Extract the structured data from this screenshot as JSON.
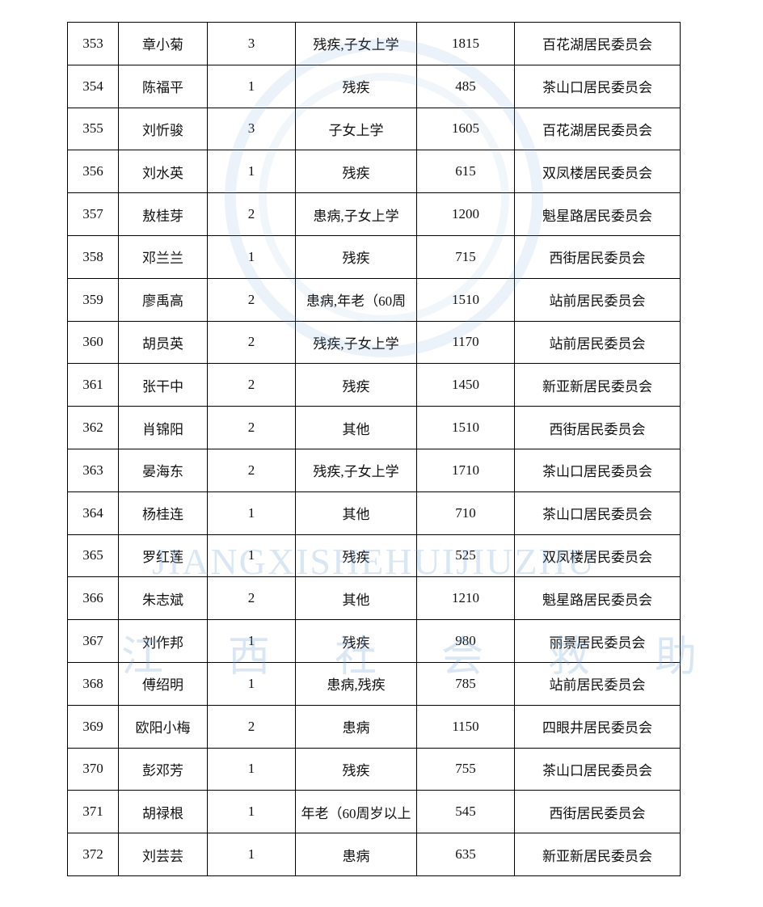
{
  "table": {
    "rows": [
      [
        "353",
        "章小菊",
        "3",
        "残疾,子女上学",
        "1815",
        "百花湖居民委员会"
      ],
      [
        "354",
        "陈福平",
        "1",
        "残疾",
        "485",
        "茶山口居民委员会"
      ],
      [
        "355",
        "刘忻骏",
        "3",
        "子女上学",
        "1605",
        "百花湖居民委员会"
      ],
      [
        "356",
        "刘水英",
        "1",
        "残疾",
        "615",
        "双凤楼居民委员会"
      ],
      [
        "357",
        "敖桂芽",
        "2",
        "患病,子女上学",
        "1200",
        "魁星路居民委员会"
      ],
      [
        "358",
        "邓兰兰",
        "1",
        "残疾",
        "715",
        "西街居民委员会"
      ],
      [
        "359",
        "廖禹高",
        "2",
        "患病,年老（60周",
        "1510",
        "站前居民委员会"
      ],
      [
        "360",
        "胡员英",
        "2",
        "残疾,子女上学",
        "1170",
        "站前居民委员会"
      ],
      [
        "361",
        "张干中",
        "2",
        "残疾",
        "1450",
        "新亚新居民委员会"
      ],
      [
        "362",
        "肖锦阳",
        "2",
        "其他",
        "1510",
        "西街居民委员会"
      ],
      [
        "363",
        "晏海东",
        "2",
        "残疾,子女上学",
        "1710",
        "茶山口居民委员会"
      ],
      [
        "364",
        "杨桂连",
        "1",
        "其他",
        "710",
        "茶山口居民委员会"
      ],
      [
        "365",
        "罗红莲",
        "1",
        "残疾",
        "525",
        "双凤楼居民委员会"
      ],
      [
        "366",
        "朱志斌",
        "2",
        "其他",
        "1210",
        "魁星路居民委员会"
      ],
      [
        "367",
        "刘作邦",
        "1",
        "残疾",
        "980",
        "丽景居民委员会"
      ],
      [
        "368",
        "傅绍明",
        "1",
        "患病,残疾",
        "785",
        "站前居民委员会"
      ],
      [
        "369",
        "欧阳小梅",
        "2",
        "患病",
        "1150",
        "四眼井居民委员会"
      ],
      [
        "370",
        "彭邓芳",
        "1",
        "残疾",
        "755",
        "茶山口居民委员会"
      ],
      [
        "371",
        "胡禄根",
        "1",
        "年老（60周岁以上",
        "545",
        "西街居民委员会"
      ],
      [
        "372",
        "刘芸芸",
        "1",
        "患病",
        "635",
        "新亚新居民委员会"
      ]
    ]
  },
  "watermark": {
    "latin": "JIANGXISHEHUIJIUZHU",
    "chinese": "江西社会救助"
  }
}
